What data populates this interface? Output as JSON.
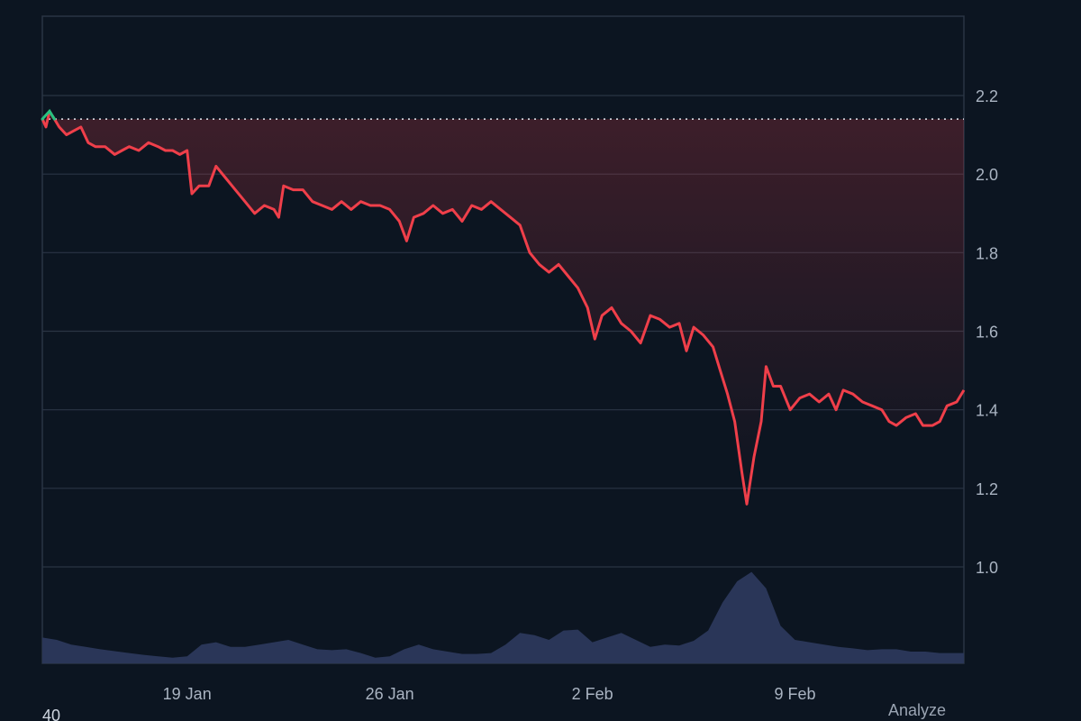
{
  "footer": {
    "left_text": "40",
    "analyze_label": "Analyze"
  },
  "colors": {
    "background": "#0c1521",
    "grid": "#2a3544",
    "price_down": "#ef3f4a",
    "price_up": "#26c281",
    "volume": "#2a3658",
    "reference_line": "#e6ebf2"
  },
  "chart_data": {
    "type": "line",
    "title": "",
    "xlabel": "",
    "ylabel": "",
    "x_range": [
      "2025-01-14",
      "2025-02-14"
    ],
    "ylim": [
      0.75,
      2.4
    ],
    "y_ticks": [
      1.0,
      1.2,
      1.4,
      1.6,
      1.8,
      2.0,
      2.2
    ],
    "x_ticks": [
      {
        "date": "2025-01-19",
        "label": "19 Jan"
      },
      {
        "date": "2025-01-26",
        "label": "26 Jan"
      },
      {
        "date": "2025-02-02",
        "label": "2 Feb"
      },
      {
        "date": "2025-02-09",
        "label": "9 Feb"
      }
    ],
    "grid": true,
    "y_axis_position": "right",
    "reference_line": {
      "value": 2.14,
      "style": "dotted"
    },
    "series": [
      {
        "type": "line",
        "points": [
          [
            "2025-01-14T00:00",
            2.14
          ],
          [
            "2025-01-14T03:00",
            2.12
          ],
          [
            "2025-01-14T06:00",
            2.16
          ],
          [
            "2025-01-14T10:00",
            2.14
          ],
          [
            "2025-01-14T14:00",
            2.12
          ],
          [
            "2025-01-14T20:00",
            2.1
          ],
          [
            "2025-01-15T02:00",
            2.11
          ],
          [
            "2025-01-15T08:00",
            2.12
          ],
          [
            "2025-01-15T14:00",
            2.08
          ],
          [
            "2025-01-15T20:00",
            2.07
          ],
          [
            "2025-01-16T04:00",
            2.07
          ],
          [
            "2025-01-16T12:00",
            2.05
          ],
          [
            "2025-01-16T18:00",
            2.06
          ],
          [
            "2025-01-17T00:00",
            2.07
          ],
          [
            "2025-01-17T08:00",
            2.06
          ],
          [
            "2025-01-17T16:00",
            2.08
          ],
          [
            "2025-01-18T00:00",
            2.07
          ],
          [
            "2025-01-18T06:00",
            2.06
          ],
          [
            "2025-01-18T12:00",
            2.06
          ],
          [
            "2025-01-18T18:00",
            2.05
          ],
          [
            "2025-01-19T00:00",
            2.06
          ],
          [
            "2025-01-19T04:00",
            1.95
          ],
          [
            "2025-01-19T10:00",
            1.97
          ],
          [
            "2025-01-19T18:00",
            1.97
          ],
          [
            "2025-01-20T00:00",
            2.02
          ],
          [
            "2025-01-20T08:00",
            1.99
          ],
          [
            "2025-01-20T16:00",
            1.96
          ],
          [
            "2025-01-21T00:00",
            1.93
          ],
          [
            "2025-01-21T08:00",
            1.9
          ],
          [
            "2025-01-21T16:00",
            1.92
          ],
          [
            "2025-01-22T00:00",
            1.91
          ],
          [
            "2025-01-22T04:00",
            1.89
          ],
          [
            "2025-01-22T08:00",
            1.97
          ],
          [
            "2025-01-22T16:00",
            1.96
          ],
          [
            "2025-01-23T00:00",
            1.96
          ],
          [
            "2025-01-23T08:00",
            1.93
          ],
          [
            "2025-01-23T16:00",
            1.92
          ],
          [
            "2025-01-24T00:00",
            1.91
          ],
          [
            "2025-01-24T08:00",
            1.93
          ],
          [
            "2025-01-24T16:00",
            1.91
          ],
          [
            "2025-01-25T00:00",
            1.93
          ],
          [
            "2025-01-25T08:00",
            1.92
          ],
          [
            "2025-01-25T16:00",
            1.92
          ],
          [
            "2025-01-26T00:00",
            1.91
          ],
          [
            "2025-01-26T08:00",
            1.88
          ],
          [
            "2025-01-26T14:00",
            1.83
          ],
          [
            "2025-01-26T20:00",
            1.89
          ],
          [
            "2025-01-27T04:00",
            1.9
          ],
          [
            "2025-01-27T12:00",
            1.92
          ],
          [
            "2025-01-27T20:00",
            1.9
          ],
          [
            "2025-01-28T04:00",
            1.91
          ],
          [
            "2025-01-28T12:00",
            1.88
          ],
          [
            "2025-01-28T20:00",
            1.92
          ],
          [
            "2025-01-29T04:00",
            1.91
          ],
          [
            "2025-01-29T12:00",
            1.93
          ],
          [
            "2025-01-29T20:00",
            1.91
          ],
          [
            "2025-01-30T04:00",
            1.89
          ],
          [
            "2025-01-30T12:00",
            1.87
          ],
          [
            "2025-01-30T20:00",
            1.8
          ],
          [
            "2025-01-31T04:00",
            1.77
          ],
          [
            "2025-01-31T12:00",
            1.75
          ],
          [
            "2025-01-31T20:00",
            1.77
          ],
          [
            "2025-02-01T04:00",
            1.74
          ],
          [
            "2025-02-01T12:00",
            1.71
          ],
          [
            "2025-02-01T20:00",
            1.66
          ],
          [
            "2025-02-02T02:00",
            1.58
          ],
          [
            "2025-02-02T08:00",
            1.64
          ],
          [
            "2025-02-02T16:00",
            1.66
          ],
          [
            "2025-02-03T00:00",
            1.62
          ],
          [
            "2025-02-03T08:00",
            1.6
          ],
          [
            "2025-02-03T16:00",
            1.57
          ],
          [
            "2025-02-04T00:00",
            1.64
          ],
          [
            "2025-02-04T08:00",
            1.63
          ],
          [
            "2025-02-04T16:00",
            1.61
          ],
          [
            "2025-02-05T00:00",
            1.62
          ],
          [
            "2025-02-05T06:00",
            1.55
          ],
          [
            "2025-02-05T12:00",
            1.61
          ],
          [
            "2025-02-05T20:00",
            1.59
          ],
          [
            "2025-02-06T04:00",
            1.56
          ],
          [
            "2025-02-06T10:00",
            1.5
          ],
          [
            "2025-02-06T16:00",
            1.44
          ],
          [
            "2025-02-06T22:00",
            1.37
          ],
          [
            "2025-02-07T04:00",
            1.24
          ],
          [
            "2025-02-07T08:00",
            1.16
          ],
          [
            "2025-02-07T14:00",
            1.28
          ],
          [
            "2025-02-07T20:00",
            1.37
          ],
          [
            "2025-02-08T00:00",
            1.51
          ],
          [
            "2025-02-08T06:00",
            1.46
          ],
          [
            "2025-02-08T12:00",
            1.46
          ],
          [
            "2025-02-08T20:00",
            1.4
          ],
          [
            "2025-02-09T04:00",
            1.43
          ],
          [
            "2025-02-09T12:00",
            1.44
          ],
          [
            "2025-02-09T20:00",
            1.42
          ],
          [
            "2025-02-10T04:00",
            1.44
          ],
          [
            "2025-02-10T10:00",
            1.4
          ],
          [
            "2025-02-10T16:00",
            1.45
          ],
          [
            "2025-02-11T00:00",
            1.44
          ],
          [
            "2025-02-11T08:00",
            1.42
          ],
          [
            "2025-02-11T16:00",
            1.41
          ],
          [
            "2025-02-12T00:00",
            1.4
          ],
          [
            "2025-02-12T06:00",
            1.37
          ],
          [
            "2025-02-12T12:00",
            1.36
          ],
          [
            "2025-02-12T20:00",
            1.38
          ],
          [
            "2025-02-13T04:00",
            1.39
          ],
          [
            "2025-02-13T10:00",
            1.36
          ],
          [
            "2025-02-13T18:00",
            1.36
          ],
          [
            "2025-02-14T00:00",
            1.37
          ],
          [
            "2025-02-14T06:00",
            1.41
          ],
          [
            "2025-02-14T14:00",
            1.42
          ],
          [
            "2025-02-14T20:00",
            1.45
          ]
        ]
      },
      {
        "type": "area",
        "points": [
          [
            "2025-01-14T00:00",
            0.055
          ],
          [
            "2025-01-14T12:00",
            0.05
          ],
          [
            "2025-01-15T00:00",
            0.04
          ],
          [
            "2025-01-15T12:00",
            0.035
          ],
          [
            "2025-01-16T00:00",
            0.03
          ],
          [
            "2025-01-16T12:00",
            0.026
          ],
          [
            "2025-01-17T00:00",
            0.022
          ],
          [
            "2025-01-17T12:00",
            0.018
          ],
          [
            "2025-01-18T00:00",
            0.015
          ],
          [
            "2025-01-18T12:00",
            0.012
          ],
          [
            "2025-01-19T00:00",
            0.015
          ],
          [
            "2025-01-19T12:00",
            0.04
          ],
          [
            "2025-01-20T00:00",
            0.045
          ],
          [
            "2025-01-20T12:00",
            0.035
          ],
          [
            "2025-01-21T00:00",
            0.035
          ],
          [
            "2025-01-21T12:00",
            0.04
          ],
          [
            "2025-01-22T00:00",
            0.045
          ],
          [
            "2025-01-22T12:00",
            0.05
          ],
          [
            "2025-01-23T00:00",
            0.04
          ],
          [
            "2025-01-23T12:00",
            0.03
          ],
          [
            "2025-01-24T00:00",
            0.028
          ],
          [
            "2025-01-24T12:00",
            0.03
          ],
          [
            "2025-01-25T00:00",
            0.022
          ],
          [
            "2025-01-25T12:00",
            0.012
          ],
          [
            "2025-01-26T00:00",
            0.015
          ],
          [
            "2025-01-26T12:00",
            0.03
          ],
          [
            "2025-01-27T00:00",
            0.04
          ],
          [
            "2025-01-27T12:00",
            0.03
          ],
          [
            "2025-01-28T00:00",
            0.025
          ],
          [
            "2025-01-28T12:00",
            0.02
          ],
          [
            "2025-01-29T00:00",
            0.02
          ],
          [
            "2025-01-29T12:00",
            0.022
          ],
          [
            "2025-01-30T00:00",
            0.04
          ],
          [
            "2025-01-30T12:00",
            0.065
          ],
          [
            "2025-01-31T00:00",
            0.06
          ],
          [
            "2025-01-31T12:00",
            0.05
          ],
          [
            "2025-02-01T00:00",
            0.07
          ],
          [
            "2025-02-01T12:00",
            0.072
          ],
          [
            "2025-02-02T00:00",
            0.045
          ],
          [
            "2025-02-02T12:00",
            0.055
          ],
          [
            "2025-02-03T00:00",
            0.065
          ],
          [
            "2025-02-03T12:00",
            0.05
          ],
          [
            "2025-02-04T00:00",
            0.035
          ],
          [
            "2025-02-04T12:00",
            0.04
          ],
          [
            "2025-02-05T00:00",
            0.038
          ],
          [
            "2025-02-05T12:00",
            0.048
          ],
          [
            "2025-02-06T00:00",
            0.07
          ],
          [
            "2025-02-06T12:00",
            0.13
          ],
          [
            "2025-02-07T00:00",
            0.175
          ],
          [
            "2025-02-07T12:00",
            0.195
          ],
          [
            "2025-02-08T00:00",
            0.16
          ],
          [
            "2025-02-08T12:00",
            0.08
          ],
          [
            "2025-02-09T00:00",
            0.05
          ],
          [
            "2025-02-09T12:00",
            0.045
          ],
          [
            "2025-02-10T00:00",
            0.04
          ],
          [
            "2025-02-10T12:00",
            0.035
          ],
          [
            "2025-02-11T00:00",
            0.032
          ],
          [
            "2025-02-11T12:00",
            0.028
          ],
          [
            "2025-02-12T00:00",
            0.03
          ],
          [
            "2025-02-12T12:00",
            0.03
          ],
          [
            "2025-02-13T00:00",
            0.025
          ],
          [
            "2025-02-13T12:00",
            0.025
          ],
          [
            "2025-02-14T00:00",
            0.022
          ],
          [
            "2025-02-14T20:00",
            0.022
          ]
        ]
      }
    ]
  }
}
